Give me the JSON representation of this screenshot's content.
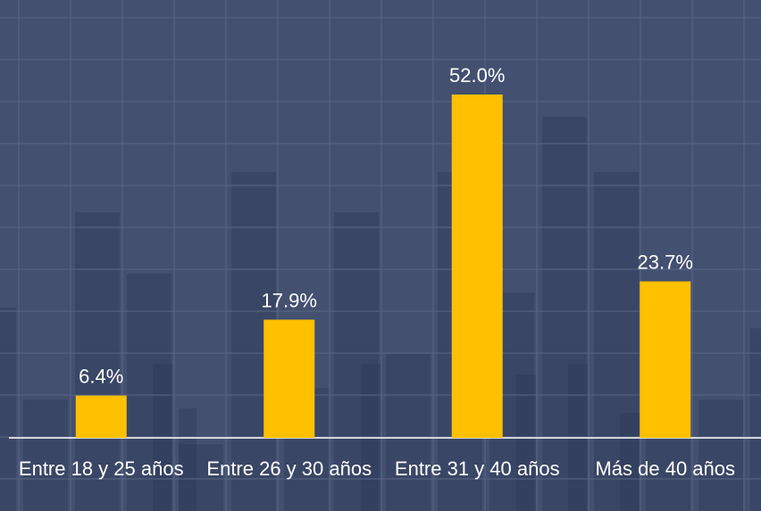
{
  "chart_data": {
    "type": "bar",
    "categories": [
      "Entre 18 y 25 años",
      "Entre 26 y 30 años",
      "Entre 31 y 40 años",
      "Más de 40 años"
    ],
    "values": [
      6.4,
      17.9,
      52.0,
      23.7
    ],
    "value_labels": [
      "6.4%",
      "17.9%",
      "52.0%",
      "23.7%"
    ],
    "color": "#ffc000"
  }
}
